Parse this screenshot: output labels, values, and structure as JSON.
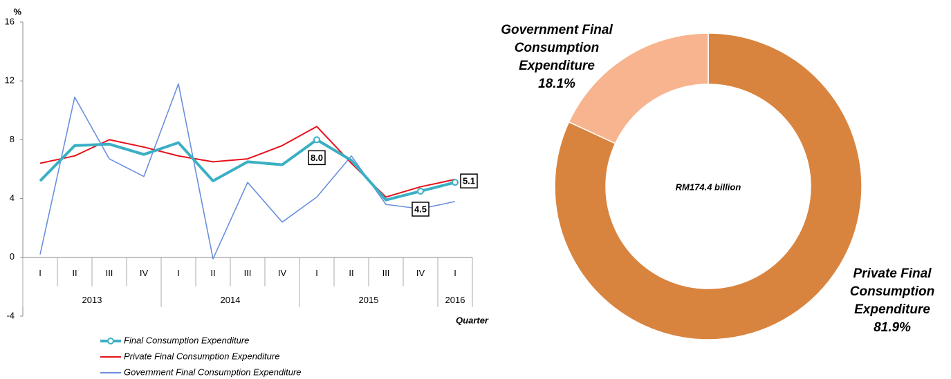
{
  "chart_data": [
    {
      "type": "line",
      "y_unit": "%",
      "x_label": "Quarter",
      "categories": [
        "I",
        "II",
        "III",
        "IV",
        "I",
        "II",
        "III",
        "IV",
        "I",
        "II",
        "III",
        "IV",
        "I"
      ],
      "years": [
        "2013",
        "2014",
        "2015",
        "2016"
      ],
      "ylim": [
        -4,
        16
      ],
      "yticks": [
        -4,
        0,
        4,
        8,
        12,
        16
      ],
      "series": [
        {
          "name": "Final Consumption Expenditure",
          "color": "#3bafc4",
          "values": [
            5.2,
            7.6,
            7.7,
            7.0,
            7.8,
            5.2,
            6.5,
            6.3,
            8.0,
            6.6,
            3.9,
            4.5,
            5.1
          ],
          "value_labels": [
            null,
            null,
            null,
            null,
            null,
            null,
            null,
            null,
            "8.0",
            null,
            null,
            "4.5",
            "5.1"
          ]
        },
        {
          "name": "Private Final Consumption Expenditure",
          "color": "#e8101a",
          "values": [
            6.4,
            6.9,
            8.0,
            7.5,
            6.9,
            6.5,
            6.7,
            7.6,
            8.9,
            6.4,
            4.1,
            4.8,
            5.3
          ]
        },
        {
          "name": "Government Final Consumption Expenditure",
          "color": "#6a8fdc",
          "values": [
            0.2,
            10.9,
            6.7,
            5.5,
            11.8,
            -0.1,
            5.1,
            2.4,
            4.1,
            6.9,
            3.6,
            3.3,
            3.8
          ]
        }
      ]
    },
    {
      "type": "pie",
      "center_label": "RM174.4 billion",
      "categories": [
        "Private Final Consumption Expenditure",
        "Government Final Consumption Expenditure"
      ],
      "values": [
        81.9,
        18.1
      ],
      "value_labels": [
        "81.9%",
        "18.1%"
      ],
      "colors": [
        "#d9843e",
        "#f8b48e"
      ]
    }
  ]
}
